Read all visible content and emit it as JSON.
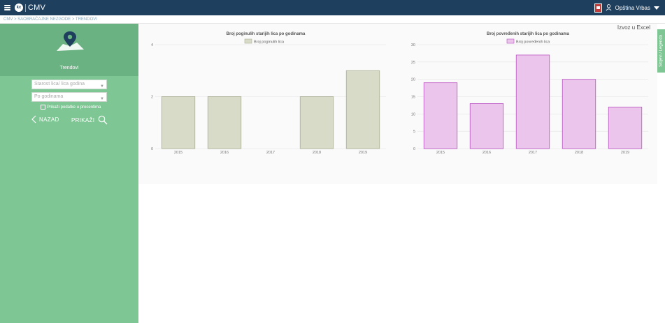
{
  "header": {
    "logo_text": "CMV",
    "logo_circle": "kc",
    "municipality": "Opština Vrbas",
    "crest_icon": "crest-icon",
    "user_icon": "user-icon"
  },
  "breadcrumb": "CMV > SAOBRAĆAJNE NEZGODE > TRENDOVI",
  "sidebar": {
    "title": "Trendovi",
    "select_type": "Starost lica/ lica godina",
    "select_group": "Po godinama",
    "checkbox_label": "Prikaži podatke u procentima",
    "back_label": "NAZAD",
    "show_label": "PRIKAŽI",
    "bg_color": "#7ec693",
    "head_color": "#6bb283"
  },
  "excel_link": "Izvoz u Excel",
  "legend_tab": "Slojevi / Legenda",
  "chart_data": [
    {
      "type": "bar",
      "title": "Broj poginulih starijih lica po godinama",
      "series": [
        {
          "name": "Broj poginulih lica",
          "values": [
            2,
            2,
            0,
            2,
            3
          ]
        }
      ],
      "categories": [
        "2015",
        "2016",
        "2017",
        "2018",
        "2019"
      ],
      "yticks": [
        "0",
        "2",
        "4"
      ],
      "ylim": [
        0,
        4
      ],
      "fill": "#d8dbc8",
      "stroke": "#a9ae93",
      "legend_position": "top-center"
    },
    {
      "type": "bar",
      "title": "Broj povređenih starijih lica po godinama",
      "series": [
        {
          "name": "Broj povređenih lica",
          "values": [
            19,
            13,
            27,
            20,
            12
          ]
        }
      ],
      "categories": [
        "2015",
        "2016",
        "2017",
        "2018",
        "2019"
      ],
      "yticks": [
        "0",
        "5",
        "10",
        "15",
        "20",
        "25",
        "30"
      ],
      "ylim": [
        0,
        30
      ],
      "fill": "#ecc5ec",
      "stroke": "#b84fc0",
      "legend_position": "top-center"
    }
  ]
}
